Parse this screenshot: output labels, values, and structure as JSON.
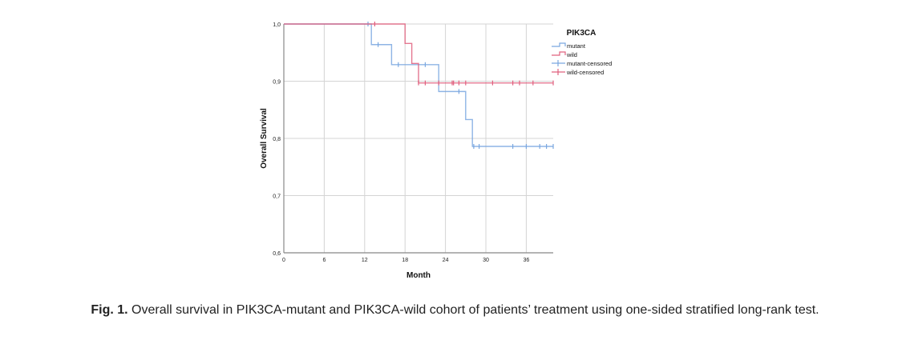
{
  "chart_data": {
    "type": "line",
    "subtype": "kaplan-meier-step",
    "title": "",
    "xlabel": "Month",
    "ylabel": "Overall Survival",
    "xlim": [
      0,
      40
    ],
    "ylim": [
      0.6,
      1.0
    ],
    "x_ticks": [
      0,
      6,
      12,
      18,
      24,
      30,
      36
    ],
    "x_tick_labels": [
      "0",
      "6",
      "12",
      "18",
      "24",
      "30",
      "36"
    ],
    "y_ticks": [
      0.6,
      0.7,
      0.8,
      0.9,
      1.0
    ],
    "y_tick_labels": [
      "0,6",
      "0,7",
      "0,8",
      "0,9",
      "1,0"
    ],
    "grid": true,
    "legend": {
      "title": "PIK3CA",
      "position": "top-right-outside",
      "entries": [
        "mutant",
        "wild",
        "mutant-censored",
        "wild-censored"
      ]
    },
    "series": [
      {
        "name": "mutant",
        "color": "#7aa7e0",
        "steps": [
          [
            0,
            1.0
          ],
          [
            13,
            0.964
          ],
          [
            16,
            0.929
          ],
          [
            23,
            0.882
          ],
          [
            27,
            0.833
          ],
          [
            28,
            0.786
          ],
          [
            40,
            0.786
          ]
        ],
        "censored": [
          [
            12.5,
            1.0
          ],
          [
            14,
            0.964
          ],
          [
            17,
            0.929
          ],
          [
            21,
            0.929
          ],
          [
            26,
            0.882
          ],
          [
            28.2,
            0.786
          ],
          [
            29,
            0.786
          ],
          [
            34,
            0.786
          ],
          [
            36,
            0.786
          ],
          [
            38,
            0.786
          ],
          [
            39,
            0.786
          ],
          [
            40,
            0.786
          ]
        ]
      },
      {
        "name": "wild",
        "color": "#e0607e",
        "steps": [
          [
            0,
            1.0
          ],
          [
            18,
            0.966
          ],
          [
            19,
            0.931
          ],
          [
            20,
            0.897
          ],
          [
            40,
            0.897
          ]
        ],
        "censored": [
          [
            13.5,
            1.0
          ],
          [
            20,
            0.897
          ],
          [
            21,
            0.897
          ],
          [
            23,
            0.897
          ],
          [
            25,
            0.897
          ],
          [
            25.2,
            0.897
          ],
          [
            26,
            0.897
          ],
          [
            27,
            0.897
          ],
          [
            31,
            0.897
          ],
          [
            34,
            0.897
          ],
          [
            35,
            0.897
          ],
          [
            37,
            0.897
          ],
          [
            40,
            0.897
          ]
        ]
      }
    ]
  },
  "caption": {
    "label": "Fig. 1.",
    "text": " Overall survival in PIK3CA-mutant and PIK3CA-wild cohort of patients’ treatment using one-sided stratified long-rank test."
  }
}
